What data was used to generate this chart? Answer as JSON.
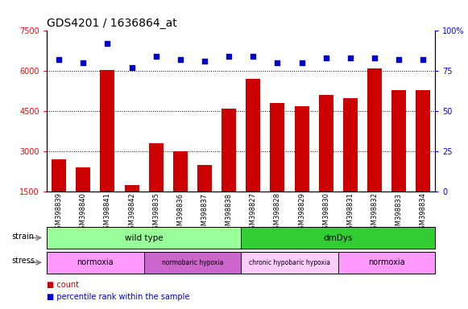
{
  "title": "GDS4201 / 1636864_at",
  "samples": [
    "GSM398839",
    "GSM398840",
    "GSM398841",
    "GSM398842",
    "GSM398835",
    "GSM398836",
    "GSM398837",
    "GSM398838",
    "GSM398827",
    "GSM398828",
    "GSM398829",
    "GSM398830",
    "GSM398831",
    "GSM398832",
    "GSM398833",
    "GSM398834"
  ],
  "counts": [
    2700,
    2400,
    6050,
    1750,
    3300,
    3000,
    2500,
    4600,
    5700,
    4800,
    4700,
    5100,
    5000,
    6100,
    5300,
    5300
  ],
  "percentile": [
    82,
    80,
    92,
    77,
    84,
    82,
    81,
    84,
    84,
    80,
    80,
    83,
    83,
    83,
    82,
    82
  ],
  "ylim_left": [
    1500,
    7500
  ],
  "ylim_right": [
    0,
    100
  ],
  "yticks_left": [
    1500,
    3000,
    4500,
    6000,
    7500
  ],
  "yticks_right": [
    0,
    25,
    50,
    75,
    100
  ],
  "bar_color": "#cc0000",
  "dot_color": "#0000cc",
  "strain_groups": [
    {
      "label": "wild type",
      "start": 0,
      "end": 8,
      "color": "#99ff99"
    },
    {
      "label": "dmDys",
      "start": 8,
      "end": 16,
      "color": "#33cc33"
    }
  ],
  "stress_groups": [
    {
      "label": "normoxia",
      "start": 0,
      "end": 4,
      "color": "#ff99ff"
    },
    {
      "label": "normobaric hypoxia",
      "start": 4,
      "end": 8,
      "color": "#cc66cc"
    },
    {
      "label": "chronic hypobaric hypoxia",
      "start": 8,
      "end": 12,
      "color": "#ffccff"
    },
    {
      "label": "normoxia",
      "start": 12,
      "end": 16,
      "color": "#ff99ff"
    }
  ],
  "legend_items": [
    {
      "label": "count",
      "color": "#cc0000",
      "marker": "s"
    },
    {
      "label": "percentile rank within the sample",
      "color": "#0000cc",
      "marker": "s"
    }
  ]
}
